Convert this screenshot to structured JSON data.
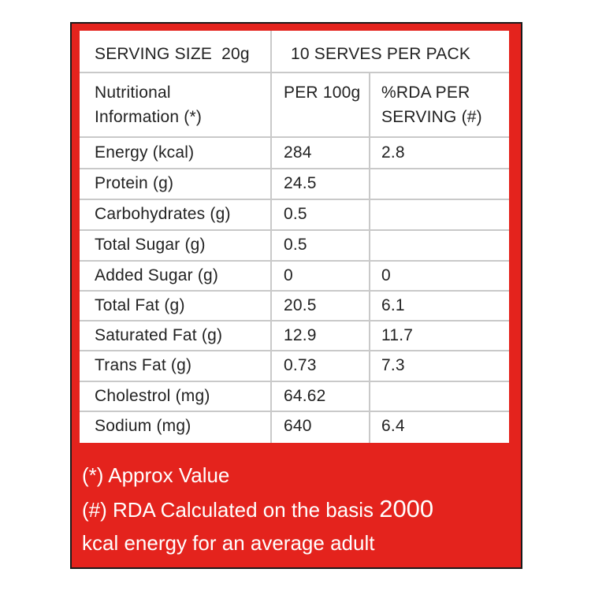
{
  "header": {
    "serving_size": "SERVING SIZE  20g",
    "serves_per_pack": "10 SERVES PER PACK"
  },
  "columns": {
    "nutrient": [
      "Nutritional",
      "Information (*)"
    ],
    "per_100g": "PER 100g",
    "rda": [
      "%RDA PER",
      "SERVING (#)"
    ]
  },
  "rows": [
    {
      "name": "Energy (kcal)",
      "per_100g": "284",
      "rda": "2.8"
    },
    {
      "name": "Protein (g)",
      "per_100g": "24.5",
      "rda": ""
    },
    {
      "name": "Carbohydrates (g)",
      "per_100g": "0.5",
      "rda": ""
    },
    {
      "name": "Total Sugar (g)",
      "per_100g": "0.5",
      "rda": ""
    },
    {
      "name": "Added Sugar (g)",
      "per_100g": "0",
      "rda": "0"
    },
    {
      "name": "Total Fat (g)",
      "per_100g": "20.5",
      "rda": "6.1"
    },
    {
      "name": "Saturated Fat (g)",
      "per_100g": "12.9",
      "rda": "11.7"
    },
    {
      "name": "Trans Fat (g)",
      "per_100g": "0.73",
      "rda": "7.3"
    },
    {
      "name": "Cholestrol (mg)",
      "per_100g": "64.62",
      "rda": ""
    },
    {
      "name": "Sodium (mg)",
      "per_100g": "640",
      "rda": "6.4"
    }
  ],
  "footnotes": {
    "approx": "(*) Approx Value",
    "rda_line1_text": "(#) RDA Calculated on the basis ",
    "rda_line1_number": "2000",
    "rda_line2": "kcal energy for an average adult"
  },
  "colors": {
    "background_red": "#e4231d",
    "table_white": "#ffffff",
    "text": "#222222",
    "grid": "#c9c9c9"
  }
}
